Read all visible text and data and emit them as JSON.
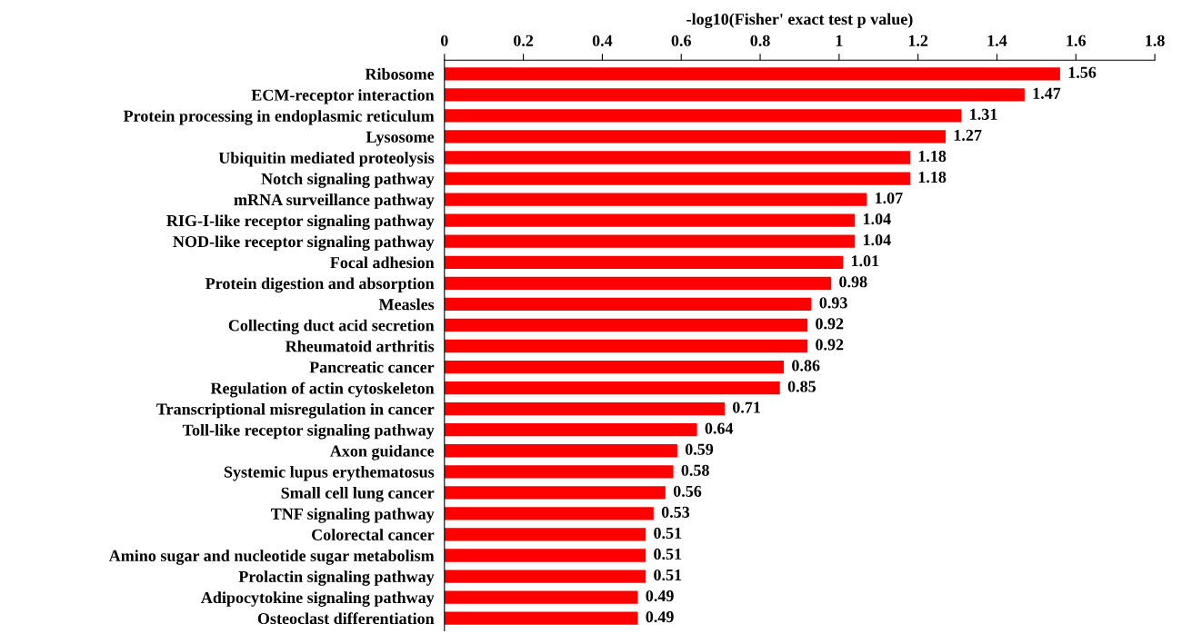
{
  "chart_data": {
    "type": "bar",
    "orientation": "horizontal",
    "xlabel": "-log10(Fisher' exact test p value)",
    "categories": [
      "Ribosome",
      "ECM-receptor interaction",
      "Protein processing in endoplasmic reticulum",
      "Lysosome",
      "Ubiquitin mediated proteolysis",
      "Notch signaling pathway",
      "mRNA surveillance pathway",
      "RIG-I-like receptor signaling pathway",
      "NOD-like receptor signaling pathway",
      "Focal adhesion",
      "Protein digestion and absorption",
      "Measles",
      "Collecting duct acid secretion",
      "Rheumatoid arthritis",
      "Pancreatic cancer",
      "Regulation of actin cytoskeleton",
      "Transcriptional misregulation in cancer",
      "Toll-like receptor signaling pathway",
      "Axon guidance",
      "Systemic lupus erythematosus",
      "Small cell lung cancer",
      "TNF signaling pathway",
      "Colorectal cancer",
      "Amino sugar and nucleotide sugar metabolism",
      "Prolactin signaling pathway",
      "Adipocytokine signaling pathway",
      "Osteoclast differentiation"
    ],
    "values": [
      1.56,
      1.47,
      1.31,
      1.27,
      1.18,
      1.18,
      1.07,
      1.04,
      1.04,
      1.01,
      0.98,
      0.93,
      0.92,
      0.92,
      0.86,
      0.85,
      0.71,
      0.64,
      0.59,
      0.58,
      0.56,
      0.53,
      0.51,
      0.51,
      0.51,
      0.49,
      0.49
    ],
    "color": "#ff0000",
    "data_labels": true,
    "grid": false,
    "legend": false,
    "xlim": [
      0,
      1.8
    ],
    "xticks": [
      0,
      0.2,
      0.4,
      0.6,
      0.8,
      1,
      1.2,
      1.4,
      1.6,
      1.8
    ]
  }
}
